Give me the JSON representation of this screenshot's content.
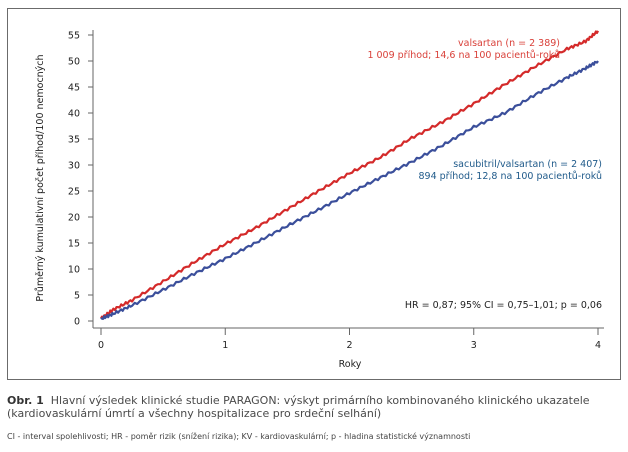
{
  "figure": {
    "label": "Obr. 1",
    "caption": "Hlavní výsledek klinické studie PARAGON: výskyt primárního kombinovaného klinického ukazatele (kardiovaskulární úmrtí a všechny hospitalizace pro srdeční selhání)",
    "footnote": "CI - interval spolehlivosti; HR - poměr rizik (snížení rizika); KV - kardiovaskulární; p - hladina statistické významnosti"
  },
  "chart_data": {
    "type": "line",
    "title": "",
    "xlabel": "Roky",
    "ylabel": "Průměrný kumulativní počet příhod/100 nemocných",
    "xlim": [
      0,
      4
    ],
    "ylim": [
      0,
      55
    ],
    "xticks": [
      0,
      1,
      2,
      3,
      4
    ],
    "yticks": [
      0,
      5,
      10,
      15,
      20,
      25,
      30,
      35,
      40,
      45,
      50,
      55
    ],
    "grid": false,
    "series": [
      {
        "name": "valsartan",
        "color": "#d42a2a",
        "label_line1": "valsartan (n = 2 389)",
        "label_line2": "1 009 příhod; 14,6 na 100 pacientů-roků",
        "x": [
          0,
          0.1,
          0.25,
          0.5,
          0.75,
          1.0,
          1.25,
          1.5,
          1.75,
          2.0,
          2.25,
          2.5,
          2.75,
          3.0,
          3.25,
          3.5,
          3.75,
          3.9,
          4.0
        ],
        "y": [
          0.5,
          2.2,
          4.0,
          7.6,
          11.3,
          14.8,
          18.0,
          21.5,
          25.0,
          28.4,
          31.5,
          35.2,
          38.3,
          41.8,
          45.5,
          49.0,
          52.3,
          53.8,
          55.8
        ]
      },
      {
        "name": "sacubitril/valsartan",
        "color": "#3b4f9b",
        "label_line1": "sacubitril/valsartan (n = 2 407)",
        "label_line2": "894 příhod; 12,8 na 100 pacientů-roků",
        "x": [
          0,
          0.1,
          0.25,
          0.5,
          0.75,
          1.0,
          1.25,
          1.5,
          1.75,
          2.0,
          2.25,
          2.5,
          2.75,
          3.0,
          3.25,
          3.5,
          3.75,
          3.9,
          4.0
        ],
        "y": [
          0.4,
          1.4,
          3.0,
          6.0,
          9.1,
          12.0,
          15.1,
          18.3,
          21.4,
          24.6,
          27.6,
          30.6,
          33.8,
          37.3,
          40.0,
          43.6,
          46.8,
          48.6,
          50.0
        ]
      }
    ],
    "annotations": [
      {
        "text": "HR = 0,87; 95% CI = 0,75–1,01; p = 0,06",
        "placement": "bottom-right"
      }
    ],
    "legend": "inline-right"
  }
}
